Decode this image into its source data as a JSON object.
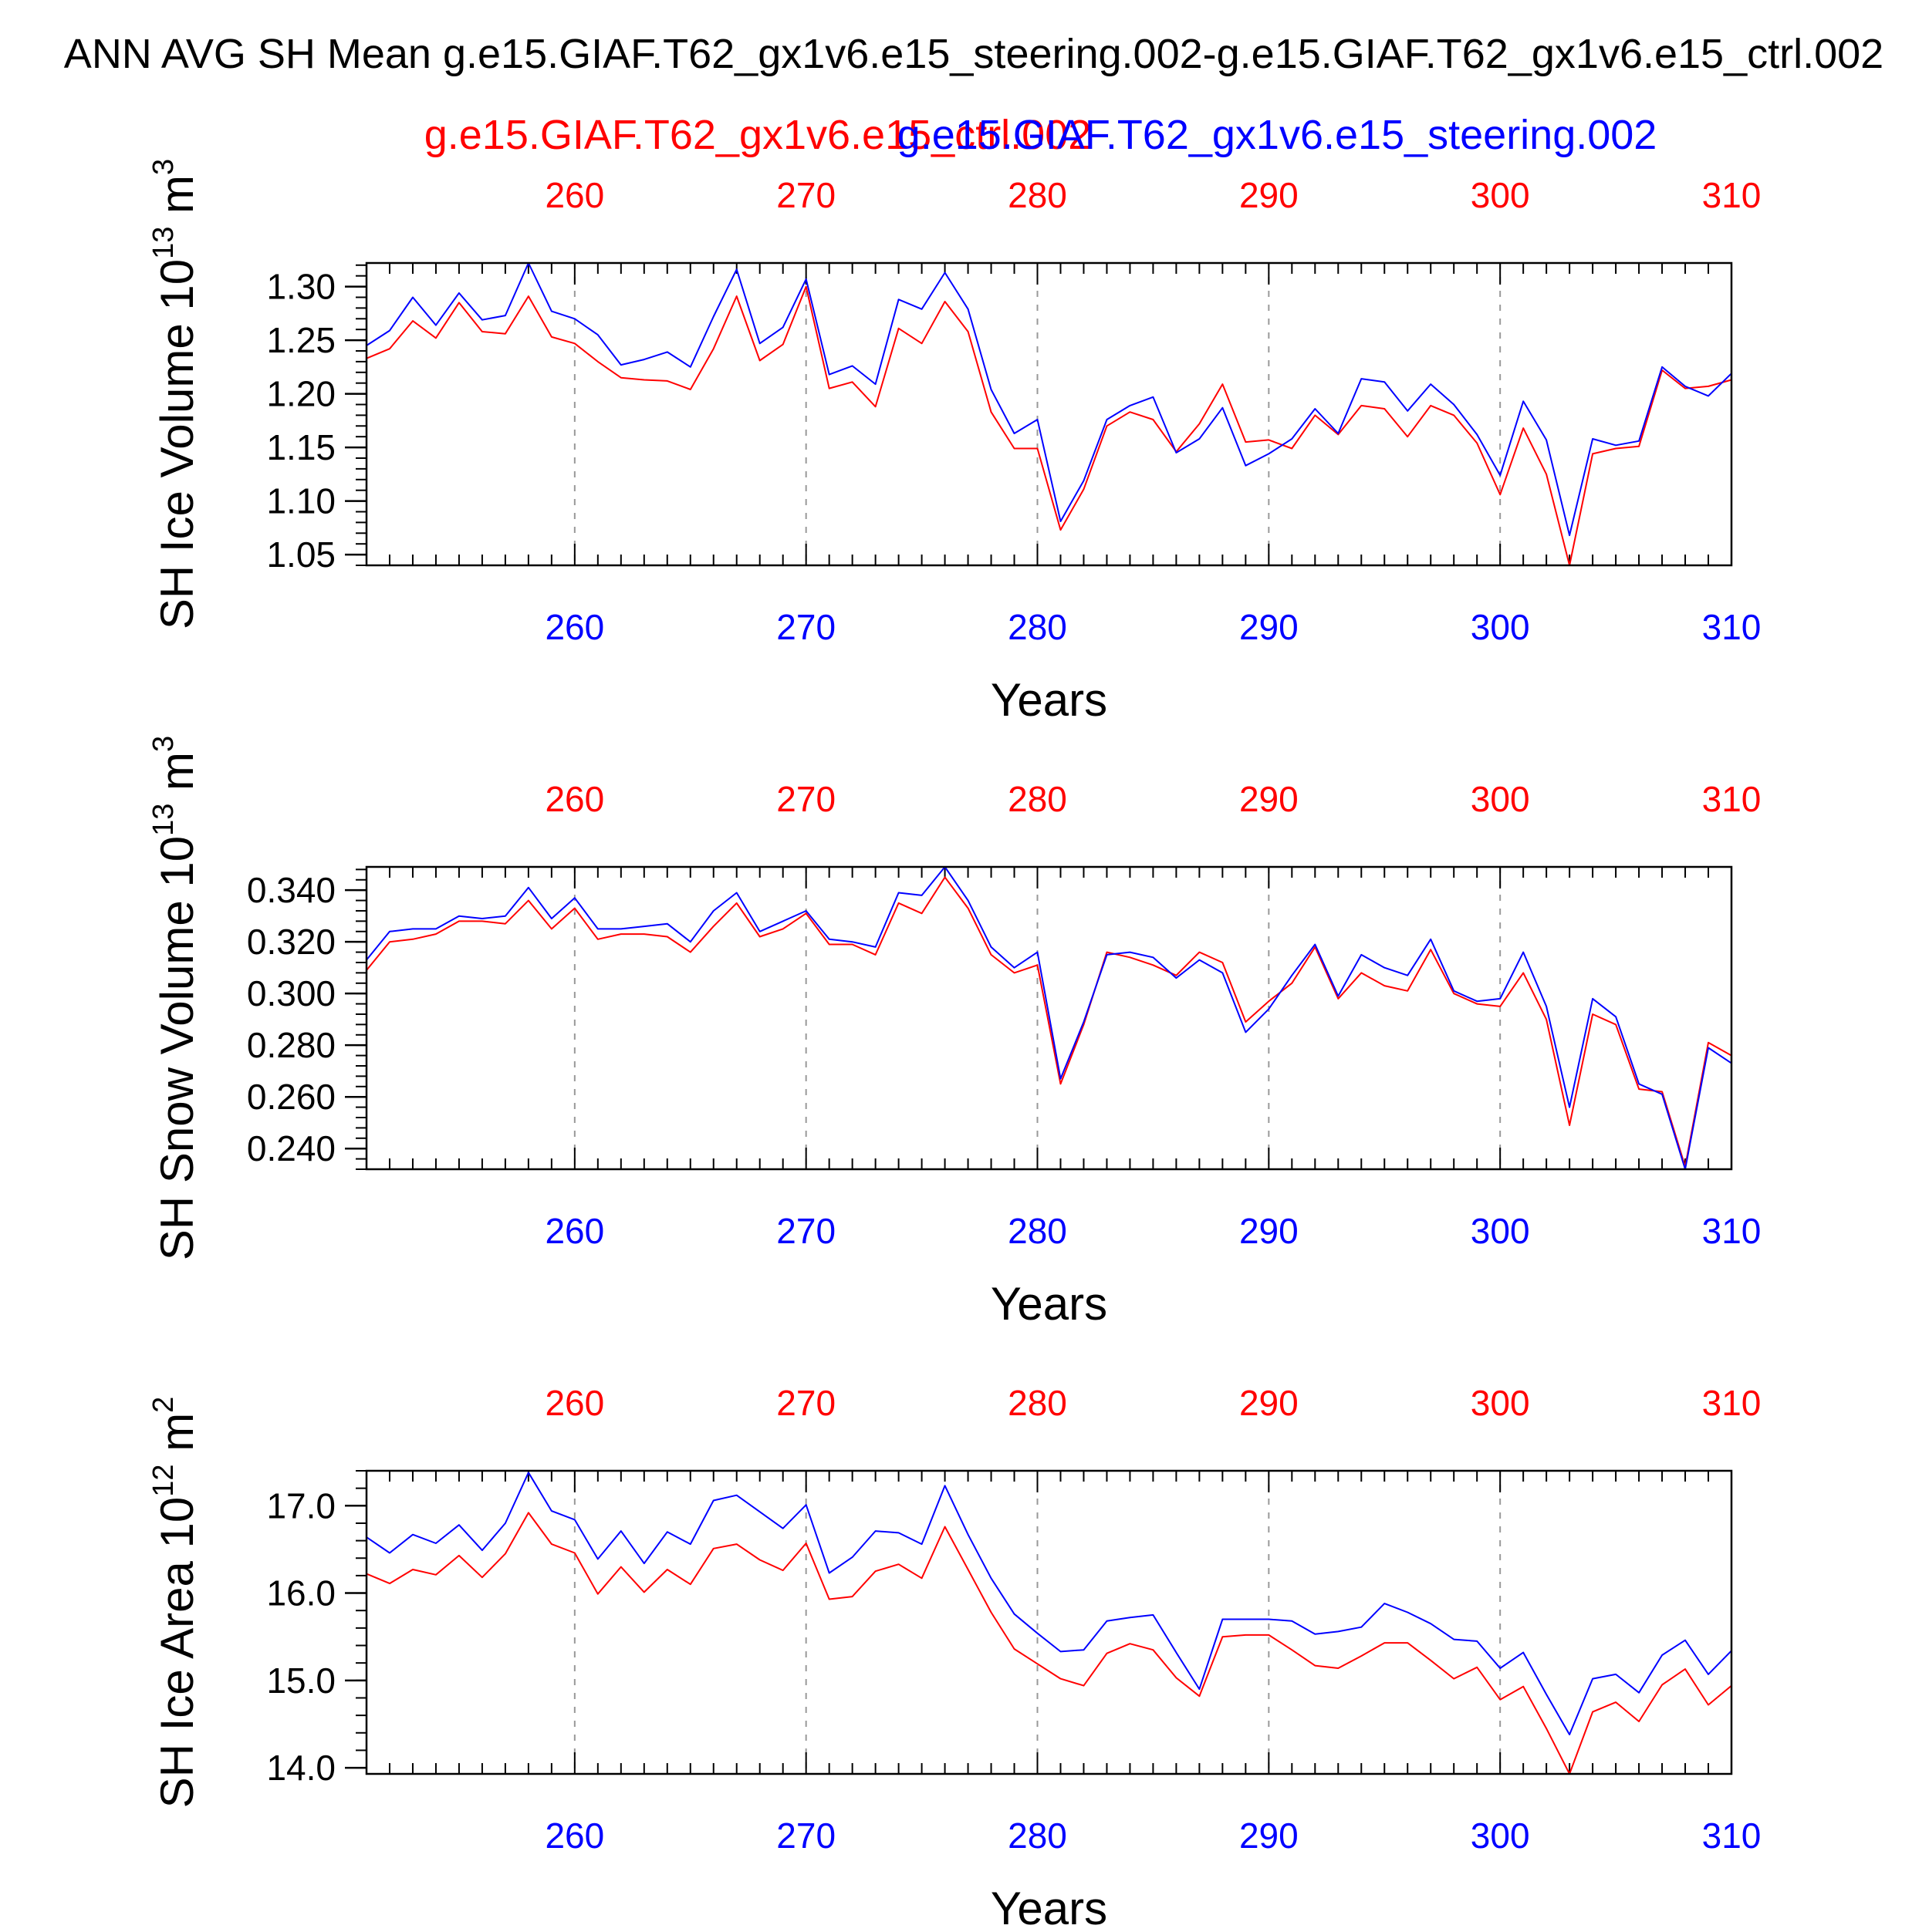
{
  "header": {
    "title": "ANN AVG SH Mean g.e15.GIAF.T62_gx1v6.e15_steering.002-g.e15.GIAF.T62_gx1v6.e15_ctrl.002",
    "legend_ctrl": "g.e15.GIAF.T62_gx1v6.e15_ctrl.002",
    "legend_steer": "g.e15.GIAF.T62_gx1v6.e15_steering.002"
  },
  "colors": {
    "ctrl": "#ff0000",
    "steer": "#0000ff",
    "axis": "#000000",
    "grid": "#999999"
  },
  "chart_data": [
    {
      "type": "line",
      "ylabel": "SH Ice Volume 10",
      "ylabel_exp": "13",
      "ylabel_unit": " m",
      "ylabel_unit_exp": "3",
      "xlabel": "Years",
      "xlim": [
        251,
        310
      ],
      "ylim": [
        1.04,
        1.322
      ],
      "yticks": [
        1.05,
        1.1,
        1.15,
        1.2,
        1.25,
        1.3
      ],
      "ytick_labels": [
        "1.05",
        "1.10",
        "1.15",
        "1.20",
        "1.25",
        "1.30"
      ],
      "yminor_step": 0.01,
      "xticks": [
        260,
        270,
        280,
        290,
        300,
        310
      ],
      "xtick_labels": [
        "260",
        "270",
        "280",
        "290",
        "300",
        "310"
      ],
      "grid": "x-dashed",
      "x": [
        251,
        252,
        253,
        254,
        255,
        256,
        257,
        258,
        259,
        260,
        261,
        262,
        263,
        264,
        265,
        266,
        267,
        268,
        269,
        270,
        271,
        272,
        273,
        274,
        275,
        276,
        277,
        278,
        279,
        280,
        281,
        282,
        283,
        284,
        285,
        286,
        287,
        288,
        289,
        290,
        291,
        292,
        293,
        294,
        295,
        296,
        297,
        298,
        299,
        300,
        301,
        302,
        303,
        304,
        305,
        306,
        307,
        308,
        309,
        310
      ],
      "series": [
        {
          "key": "ctrl",
          "values": [
            1.233,
            1.242,
            1.268,
            1.252,
            1.285,
            1.258,
            1.256,
            1.291,
            1.253,
            1.247,
            1.23,
            1.215,
            1.213,
            1.212,
            1.204,
            1.242,
            1.291,
            1.231,
            1.246,
            1.3,
            1.205,
            1.211,
            1.188,
            1.261,
            1.247,
            1.286,
            1.258,
            1.183,
            1.149,
            1.149,
            1.073,
            1.111,
            1.17,
            1.183,
            1.176,
            1.146,
            1.172,
            1.209,
            1.155,
            1.157,
            1.149,
            1.18,
            1.162,
            1.189,
            1.186,
            1.16,
            1.189,
            1.18,
            1.154,
            1.106,
            1.168,
            1.125,
            1.04,
            1.144,
            1.149,
            1.151,
            1.222,
            1.205,
            1.207,
            1.213
          ]
        },
        {
          "key": "steer",
          "values": [
            1.245,
            1.259,
            1.29,
            1.264,
            1.294,
            1.269,
            1.273,
            1.322,
            1.277,
            1.27,
            1.255,
            1.227,
            1.232,
            1.239,
            1.225,
            1.272,
            1.316,
            1.247,
            1.262,
            1.307,
            1.218,
            1.226,
            1.209,
            1.288,
            1.279,
            1.313,
            1.279,
            1.204,
            1.163,
            1.176,
            1.081,
            1.119,
            1.176,
            1.189,
            1.197,
            1.145,
            1.158,
            1.187,
            1.133,
            1.144,
            1.158,
            1.186,
            1.163,
            1.214,
            1.211,
            1.184,
            1.209,
            1.19,
            1.162,
            1.124,
            1.193,
            1.157,
            1.068,
            1.158,
            1.152,
            1.156,
            1.225,
            1.207,
            1.198,
            1.219
          ]
        }
      ]
    },
    {
      "type": "line",
      "ylabel": "SH Snow Volume 10",
      "ylabel_exp": "13",
      "ylabel_unit": " m",
      "ylabel_unit_exp": "3",
      "xlabel": "Years",
      "xlim": [
        251,
        310
      ],
      "ylim": [
        0.232,
        0.349
      ],
      "yticks": [
        0.24,
        0.26,
        0.28,
        0.3,
        0.32,
        0.34
      ],
      "ytick_labels": [
        "0.240",
        "0.260",
        "0.280",
        "0.300",
        "0.320",
        "0.340"
      ],
      "yminor_step": 0.004,
      "xticks": [
        260,
        270,
        280,
        290,
        300,
        310
      ],
      "xtick_labels": [
        "260",
        "270",
        "280",
        "290",
        "300",
        "310"
      ],
      "grid": "x-dashed",
      "x": [
        251,
        252,
        253,
        254,
        255,
        256,
        257,
        258,
        259,
        260,
        261,
        262,
        263,
        264,
        265,
        266,
        267,
        268,
        269,
        270,
        271,
        272,
        273,
        274,
        275,
        276,
        277,
        278,
        279,
        280,
        281,
        282,
        283,
        284,
        285,
        286,
        287,
        288,
        289,
        290,
        291,
        292,
        293,
        294,
        295,
        296,
        297,
        298,
        299,
        300,
        301,
        302,
        303,
        304,
        305,
        306,
        307,
        308,
        309,
        310
      ],
      "series": [
        {
          "key": "ctrl",
          "values": [
            0.309,
            0.32,
            0.321,
            0.323,
            0.328,
            0.328,
            0.327,
            0.336,
            0.325,
            0.333,
            0.321,
            0.323,
            0.323,
            0.322,
            0.316,
            0.326,
            0.335,
            0.322,
            0.325,
            0.331,
            0.319,
            0.319,
            0.315,
            0.335,
            0.331,
            0.345,
            0.333,
            0.315,
            0.308,
            0.311,
            0.265,
            0.288,
            0.316,
            0.314,
            0.311,
            0.307,
            0.316,
            0.312,
            0.289,
            0.297,
            0.304,
            0.318,
            0.298,
            0.308,
            0.303,
            0.301,
            0.317,
            0.3,
            0.296,
            0.295,
            0.308,
            0.29,
            0.249,
            0.292,
            0.288,
            0.263,
            0.262,
            0.233,
            0.281,
            0.276
          ]
        },
        {
          "key": "steer",
          "values": [
            0.313,
            0.324,
            0.325,
            0.325,
            0.33,
            0.329,
            0.33,
            0.341,
            0.329,
            0.337,
            0.325,
            0.325,
            0.326,
            0.327,
            0.32,
            0.332,
            0.339,
            0.324,
            0.328,
            0.332,
            0.321,
            0.32,
            0.318,
            0.339,
            0.338,
            0.349,
            0.336,
            0.318,
            0.31,
            0.316,
            0.267,
            0.289,
            0.315,
            0.316,
            0.314,
            0.306,
            0.313,
            0.308,
            0.285,
            0.294,
            0.307,
            0.319,
            0.299,
            0.315,
            0.31,
            0.307,
            0.321,
            0.301,
            0.297,
            0.298,
            0.316,
            0.295,
            0.256,
            0.298,
            0.291,
            0.265,
            0.261,
            0.232,
            0.279,
            0.273
          ]
        }
      ]
    },
    {
      "type": "line",
      "ylabel": "SH Ice Area 10",
      "ylabel_exp": "12",
      "ylabel_unit": " m",
      "ylabel_unit_exp": "2",
      "xlabel": "Years",
      "xlim": [
        251,
        310
      ],
      "ylim": [
        13.93,
        17.4
      ],
      "yticks": [
        14.0,
        15.0,
        16.0,
        17.0
      ],
      "ytick_labels": [
        "14.0",
        "15.0",
        "16.0",
        "17.0"
      ],
      "yminor_step": 0.2,
      "xticks": [
        260,
        270,
        280,
        290,
        300,
        310
      ],
      "xtick_labels": [
        "260",
        "270",
        "280",
        "290",
        "300",
        "310"
      ],
      "grid": "x-dashed",
      "x": [
        251,
        252,
        253,
        254,
        255,
        256,
        257,
        258,
        259,
        260,
        261,
        262,
        263,
        264,
        265,
        266,
        267,
        268,
        269,
        270,
        271,
        272,
        273,
        274,
        275,
        276,
        277,
        278,
        279,
        280,
        281,
        282,
        283,
        284,
        285,
        286,
        287,
        288,
        289,
        290,
        291,
        292,
        293,
        294,
        295,
        296,
        297,
        298,
        299,
        300,
        301,
        302,
        303,
        304,
        305,
        306,
        307,
        308,
        309,
        310
      ],
      "series": [
        {
          "key": "ctrl",
          "values": [
            16.22,
            16.11,
            16.27,
            16.21,
            16.43,
            16.18,
            16.45,
            16.92,
            16.56,
            16.46,
            15.99,
            16.3,
            16.01,
            16.27,
            16.1,
            16.51,
            16.56,
            16.38,
            16.26,
            16.57,
            15.93,
            15.96,
            16.25,
            16.33,
            16.17,
            16.76,
            16.27,
            15.78,
            15.36,
            15.19,
            15.02,
            14.94,
            15.31,
            15.42,
            15.35,
            15.03,
            14.82,
            15.5,
            15.52,
            15.52,
            15.35,
            15.17,
            15.14,
            15.28,
            15.43,
            15.43,
            15.23,
            15.02,
            15.15,
            14.78,
            14.93,
            14.45,
            13.93,
            14.64,
            14.75,
            14.53,
            14.95,
            15.13,
            14.72,
            14.94
          ]
        },
        {
          "key": "steer",
          "values": [
            16.64,
            16.46,
            16.67,
            16.57,
            16.78,
            16.49,
            16.8,
            17.38,
            16.94,
            16.84,
            16.39,
            16.71,
            16.34,
            16.7,
            16.56,
            17.06,
            17.12,
            16.93,
            16.74,
            17.01,
            16.23,
            16.41,
            16.71,
            16.69,
            16.56,
            17.23,
            16.67,
            16.17,
            15.76,
            15.54,
            15.33,
            15.35,
            15.68,
            15.72,
            15.75,
            15.32,
            14.9,
            15.7,
            15.7,
            15.7,
            15.68,
            15.53,
            15.56,
            15.61,
            15.88,
            15.78,
            15.65,
            15.47,
            15.45,
            15.14,
            15.32,
            14.84,
            14.38,
            15.02,
            15.07,
            14.86,
            15.29,
            15.46,
            15.07,
            15.34
          ]
        }
      ]
    }
  ]
}
